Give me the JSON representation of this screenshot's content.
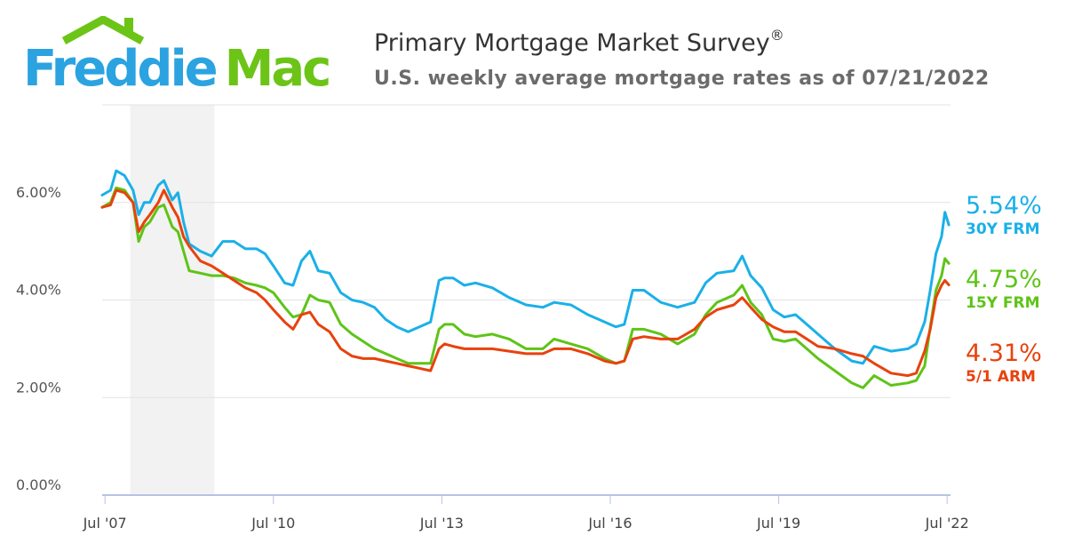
{
  "logo": {
    "word1": "Freddie",
    "word2": "Mac",
    "color_blue": "#2aa3e0",
    "color_green": "#6cc417"
  },
  "header": {
    "title": "Primary Mortgage Market Survey",
    "title_mark": "®",
    "subtitle": "U.S. weekly average mortgage rates as of 07/21/2022"
  },
  "callouts": [
    {
      "value": "5.54%",
      "label": "30Y FRM",
      "color": "#1ab0e8"
    },
    {
      "value": "4.75%",
      "label": "15Y FRM",
      "color": "#5ec417"
    },
    {
      "value": "4.31%",
      "label": "5/1 ARM",
      "color": "#e8420c"
    }
  ],
  "chart_data": {
    "type": "line",
    "title": "Primary Mortgage Market Survey",
    "subtitle": "U.S. weekly average mortgage rates as of 07/21/2022",
    "xlabel": "",
    "ylabel": "",
    "xlim": [
      2007.45,
      2022.56
    ],
    "ylim": [
      0,
      8
    ],
    "grid": true,
    "y_ticks": [
      {
        "value": 0,
        "label": "0.00%"
      },
      {
        "value": 2,
        "label": "2.00%"
      },
      {
        "value": 4,
        "label": "4.00%"
      },
      {
        "value": 6,
        "label": "6.00%"
      }
    ],
    "x_ticks": [
      {
        "value": 2007.5,
        "label": "Jul '07"
      },
      {
        "value": 2010.5,
        "label": "Jul '10"
      },
      {
        "value": 2013.5,
        "label": "Jul '13"
      },
      {
        "value": 2016.5,
        "label": "Jul '16"
      },
      {
        "value": 2019.5,
        "label": "Jul '19"
      },
      {
        "value": 2022.5,
        "label": "Jul '22"
      }
    ],
    "shaded_band": {
      "x_start": 2007.95,
      "x_end": 2009.45,
      "color": "#f2f2f2"
    },
    "series": [
      {
        "name": "30Y FRM",
        "color": "#1ab0e8",
        "x": [
          2007.45,
          2007.6,
          2007.7,
          2007.85,
          2008.0,
          2008.1,
          2008.2,
          2008.3,
          2008.45,
          2008.55,
          2008.7,
          2008.8,
          2008.9,
          2009.0,
          2009.2,
          2009.4,
          2009.6,
          2009.8,
          2010.0,
          2010.2,
          2010.35,
          2010.5,
          2010.7,
          2010.85,
          2011.0,
          2011.15,
          2011.3,
          2011.5,
          2011.7,
          2011.9,
          2012.1,
          2012.3,
          2012.5,
          2012.7,
          2012.9,
          2013.1,
          2013.3,
          2013.45,
          2013.55,
          2013.7,
          2013.9,
          2014.1,
          2014.4,
          2014.7,
          2015.0,
          2015.3,
          2015.5,
          2015.8,
          2016.1,
          2016.4,
          2016.6,
          2016.75,
          2016.9,
          2017.1,
          2017.4,
          2017.7,
          2018.0,
          2018.2,
          2018.4,
          2018.7,
          2018.85,
          2019.0,
          2019.2,
          2019.4,
          2019.6,
          2019.8,
          2020.0,
          2020.2,
          2020.5,
          2020.8,
          2021.0,
          2021.2,
          2021.5,
          2021.8,
          2021.95,
          2022.1,
          2022.2,
          2022.3,
          2022.4,
          2022.46,
          2022.53
        ],
        "values": [
          6.15,
          6.25,
          6.65,
          6.55,
          6.25,
          5.75,
          6.0,
          6.0,
          6.35,
          6.45,
          6.05,
          6.2,
          5.6,
          5.15,
          5.0,
          4.9,
          5.2,
          5.2,
          5.05,
          5.05,
          4.95,
          4.7,
          4.35,
          4.3,
          4.8,
          5.0,
          4.6,
          4.55,
          4.15,
          4.0,
          3.95,
          3.85,
          3.6,
          3.45,
          3.35,
          3.45,
          3.55,
          4.4,
          4.45,
          4.45,
          4.3,
          4.35,
          4.25,
          4.05,
          3.9,
          3.85,
          3.95,
          3.9,
          3.7,
          3.55,
          3.45,
          3.5,
          4.2,
          4.2,
          3.95,
          3.85,
          3.95,
          4.35,
          4.55,
          4.6,
          4.9,
          4.5,
          4.25,
          3.8,
          3.65,
          3.7,
          3.5,
          3.3,
          3.0,
          2.75,
          2.7,
          3.05,
          2.95,
          3.0,
          3.1,
          3.55,
          4.2,
          4.95,
          5.3,
          5.8,
          5.54
        ]
      },
      {
        "name": "15Y FRM",
        "color": "#5ec417",
        "x": [
          2007.45,
          2007.6,
          2007.7,
          2007.85,
          2008.0,
          2008.1,
          2008.2,
          2008.3,
          2008.45,
          2008.55,
          2008.7,
          2008.8,
          2008.9,
          2009.0,
          2009.2,
          2009.4,
          2009.6,
          2009.8,
          2010.0,
          2010.2,
          2010.35,
          2010.5,
          2010.7,
          2010.85,
          2011.0,
          2011.15,
          2011.3,
          2011.5,
          2011.7,
          2011.9,
          2012.1,
          2012.3,
          2012.5,
          2012.7,
          2012.9,
          2013.1,
          2013.3,
          2013.45,
          2013.55,
          2013.7,
          2013.9,
          2014.1,
          2014.4,
          2014.7,
          2015.0,
          2015.3,
          2015.5,
          2015.8,
          2016.1,
          2016.4,
          2016.6,
          2016.75,
          2016.9,
          2017.1,
          2017.4,
          2017.7,
          2018.0,
          2018.2,
          2018.4,
          2018.7,
          2018.85,
          2019.0,
          2019.2,
          2019.4,
          2019.6,
          2019.8,
          2020.0,
          2020.2,
          2020.5,
          2020.8,
          2021.0,
          2021.2,
          2021.5,
          2021.8,
          2021.95,
          2022.1,
          2022.2,
          2022.3,
          2022.4,
          2022.46,
          2022.53
        ],
        "values": [
          5.9,
          6.0,
          6.3,
          6.25,
          6.0,
          5.2,
          5.5,
          5.6,
          5.9,
          5.95,
          5.5,
          5.4,
          5.0,
          4.6,
          4.55,
          4.5,
          4.5,
          4.45,
          4.35,
          4.3,
          4.25,
          4.15,
          3.85,
          3.65,
          3.7,
          4.1,
          4.0,
          3.95,
          3.5,
          3.3,
          3.15,
          3.0,
          2.9,
          2.8,
          2.7,
          2.7,
          2.7,
          3.4,
          3.5,
          3.5,
          3.3,
          3.25,
          3.3,
          3.2,
          3.0,
          3.0,
          3.2,
          3.1,
          3.0,
          2.8,
          2.7,
          2.75,
          3.4,
          3.4,
          3.3,
          3.1,
          3.3,
          3.7,
          3.95,
          4.1,
          4.3,
          3.95,
          3.7,
          3.2,
          3.15,
          3.2,
          3.0,
          2.8,
          2.55,
          2.3,
          2.2,
          2.45,
          2.25,
          2.3,
          2.35,
          2.65,
          3.45,
          4.2,
          4.5,
          4.85,
          4.75
        ]
      },
      {
        "name": "5/1 ARM",
        "color": "#e8420c",
        "x": [
          2007.45,
          2007.6,
          2007.7,
          2007.85,
          2008.0,
          2008.1,
          2008.2,
          2008.3,
          2008.45,
          2008.55,
          2008.7,
          2008.8,
          2008.9,
          2009.0,
          2009.2,
          2009.4,
          2009.6,
          2009.8,
          2010.0,
          2010.2,
          2010.35,
          2010.5,
          2010.7,
          2010.85,
          2011.0,
          2011.15,
          2011.3,
          2011.5,
          2011.7,
          2011.9,
          2012.1,
          2012.3,
          2012.5,
          2012.7,
          2012.9,
          2013.1,
          2013.3,
          2013.45,
          2013.55,
          2013.7,
          2013.9,
          2014.1,
          2014.4,
          2014.7,
          2015.0,
          2015.3,
          2015.5,
          2015.8,
          2016.1,
          2016.4,
          2016.6,
          2016.75,
          2016.9,
          2017.1,
          2017.4,
          2017.7,
          2018.0,
          2018.2,
          2018.4,
          2018.7,
          2018.85,
          2019.0,
          2019.2,
          2019.4,
          2019.6,
          2019.8,
          2020.0,
          2020.2,
          2020.5,
          2020.8,
          2021.0,
          2021.2,
          2021.5,
          2021.8,
          2021.95,
          2022.1,
          2022.2,
          2022.3,
          2022.4,
          2022.46,
          2022.53
        ],
        "values": [
          5.9,
          5.95,
          6.25,
          6.2,
          6.0,
          5.4,
          5.6,
          5.75,
          6.0,
          6.25,
          5.9,
          5.7,
          5.3,
          5.1,
          4.8,
          4.7,
          4.55,
          4.4,
          4.25,
          4.15,
          4.0,
          3.8,
          3.55,
          3.4,
          3.7,
          3.75,
          3.5,
          3.35,
          3.0,
          2.85,
          2.8,
          2.8,
          2.75,
          2.7,
          2.65,
          2.6,
          2.55,
          3.0,
          3.1,
          3.05,
          3.0,
          3.0,
          3.0,
          2.95,
          2.9,
          2.9,
          3.0,
          3.0,
          2.9,
          2.75,
          2.7,
          2.75,
          3.2,
          3.25,
          3.2,
          3.2,
          3.4,
          3.65,
          3.8,
          3.9,
          4.05,
          3.85,
          3.6,
          3.45,
          3.35,
          3.35,
          3.2,
          3.05,
          3.0,
          2.9,
          2.85,
          2.7,
          2.5,
          2.45,
          2.5,
          2.95,
          3.4,
          4.05,
          4.3,
          4.4,
          4.31
        ]
      }
    ]
  }
}
